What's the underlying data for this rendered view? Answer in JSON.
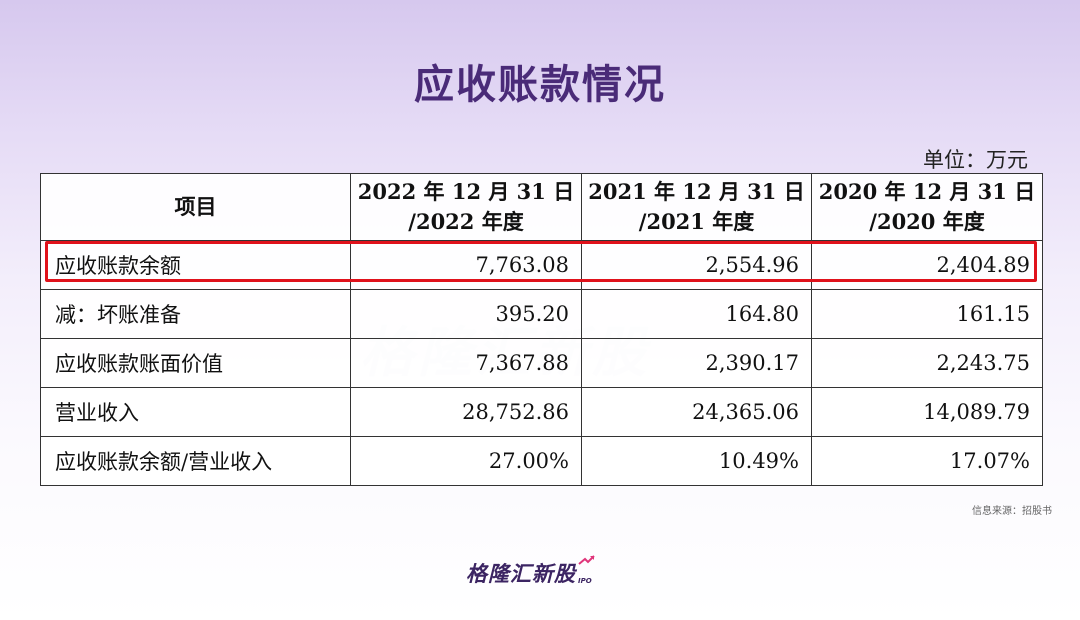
{
  "title": "应收账款情况",
  "unit": "单位：万元",
  "table": {
    "headers": [
      {
        "line1": "项目",
        "line2": ""
      },
      {
        "line1": "2022 年 12 月 31 日",
        "line2": "/2022 年度"
      },
      {
        "line1": "2021 年 12 月 31 日",
        "line2": "/2021 年度"
      },
      {
        "line1": "2020 年 12 月 31 日",
        "line2": "/2020 年度"
      }
    ],
    "rows": [
      {
        "label": "应收账款余额",
        "values": [
          "7,763.08",
          "2,554.96",
          "2,404.89"
        ],
        "highlighted": true
      },
      {
        "label": "减：坏账准备",
        "values": [
          "395.20",
          "164.80",
          "161.15"
        ]
      },
      {
        "label": "应收账款账面价值",
        "values": [
          "7,367.88",
          "2,390.17",
          "2,243.75"
        ]
      },
      {
        "label": "营业收入",
        "values": [
          "28,752.86",
          "24,365.06",
          "14,089.79"
        ]
      },
      {
        "label": "应收账款余额/营业收入",
        "values": [
          "27.00%",
          "10.49%",
          "17.07%"
        ]
      }
    ]
  },
  "watermark": "格隆汇新股",
  "source": "信息来源：招股书",
  "footer": {
    "logo": "格隆汇新股",
    "logo_sub": "IPO"
  },
  "colors": {
    "title": "#4a2b78",
    "highlight": "#e0121b",
    "brand": "#3c2563",
    "accent_arrow": "#e0357a"
  }
}
